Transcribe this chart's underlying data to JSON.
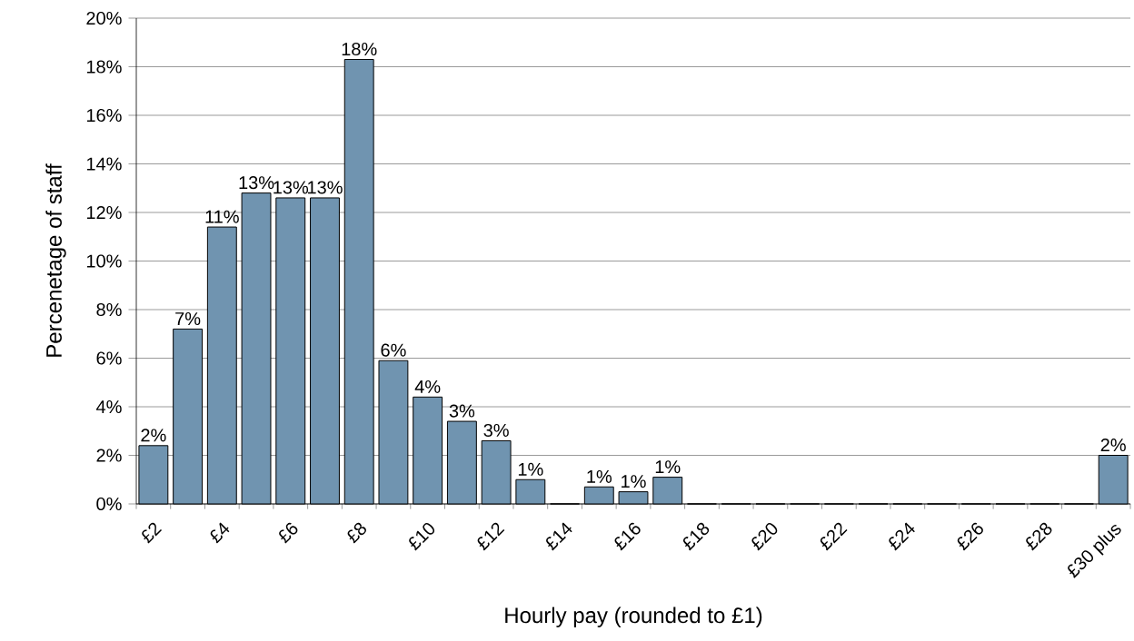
{
  "chart_data": {
    "type": "bar",
    "xlabel": "Hourly pay (rounded to £1)",
    "ylabel": "Percenetage of staff",
    "categories": [
      "£2",
      null,
      "£4",
      null,
      "£6",
      null,
      "£8",
      null,
      "£10",
      null,
      "£12",
      null,
      "£14",
      null,
      "£16",
      null,
      "£18",
      null,
      "£20",
      null,
      "£22",
      null,
      "£24",
      null,
      "£26",
      null,
      "£28",
      null,
      "£30 plus"
    ],
    "values": [
      2.4,
      7.2,
      11.4,
      12.8,
      12.6,
      12.6,
      18.3,
      5.9,
      4.4,
      3.4,
      2.6,
      1.0,
      0,
      0.7,
      0.5,
      1.1,
      0,
      0,
      0,
      0,
      0,
      0,
      0,
      0,
      0,
      0,
      0,
      0,
      2.0
    ],
    "value_labels": [
      "2%",
      "7%",
      "11%",
      "13%",
      "13%",
      "13%",
      "18%",
      "6%",
      "4%",
      "3%",
      "3%",
      "1%",
      null,
      "1%",
      "1%",
      "1%",
      null,
      null,
      null,
      null,
      null,
      null,
      null,
      null,
      null,
      null,
      null,
      null,
      "2%"
    ],
    "color": "#7094b0",
    "ylim": [
      0,
      20
    ],
    "yticks": [
      {
        "value": 0,
        "label": "0%"
      },
      {
        "value": 2,
        "label": "2%"
      },
      {
        "value": 4,
        "label": "4%"
      },
      {
        "value": 6,
        "label": "6%"
      },
      {
        "value": 8,
        "label": "8%"
      },
      {
        "value": 10,
        "label": "10%"
      },
      {
        "value": 12,
        "label": "12%"
      },
      {
        "value": 14,
        "label": "14%"
      },
      {
        "value": 16,
        "label": "16%"
      },
      {
        "value": 18,
        "label": "18%"
      },
      {
        "value": 20,
        "label": "20%"
      }
    ],
    "grid": "y"
  }
}
